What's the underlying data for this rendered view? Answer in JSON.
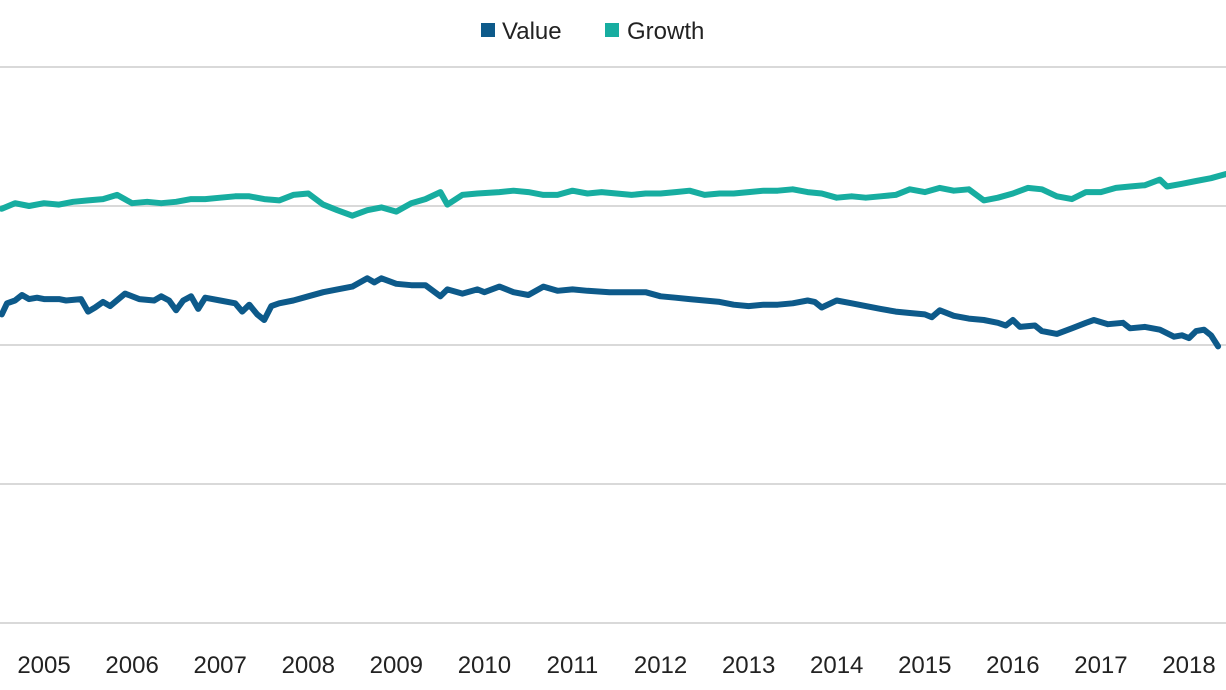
{
  "chart_data": {
    "type": "line",
    "title": "",
    "xlabel": "",
    "ylabel": "",
    "x_ticks": [
      "2005",
      "2006",
      "2007",
      "2008",
      "2009",
      "2010",
      "2011",
      "2012",
      "2013",
      "2014",
      "2015",
      "2016",
      "2017",
      "2018"
    ],
    "x_start": 2004.5,
    "x_end": 2018.42,
    "ylim": [
      0,
      4
    ],
    "y_gridlines": [
      0,
      1,
      2,
      3,
      4
    ],
    "grid": true,
    "legend_position": "top-center",
    "series": [
      {
        "name": "Value",
        "color": "#0d5a8a",
        "points": [
          [
            2004.52,
            2.22
          ],
          [
            2004.58,
            2.3
          ],
          [
            2004.67,
            2.32
          ],
          [
            2004.75,
            2.36
          ],
          [
            2004.83,
            2.33
          ],
          [
            2004.92,
            2.34
          ],
          [
            2005.0,
            2.33
          ],
          [
            2005.17,
            2.33
          ],
          [
            2005.25,
            2.32
          ],
          [
            2005.42,
            2.33
          ],
          [
            2005.5,
            2.24
          ],
          [
            2005.58,
            2.27
          ],
          [
            2005.67,
            2.31
          ],
          [
            2005.75,
            2.28
          ],
          [
            2005.92,
            2.37
          ],
          [
            2006.08,
            2.33
          ],
          [
            2006.25,
            2.32
          ],
          [
            2006.33,
            2.35
          ],
          [
            2006.42,
            2.32
          ],
          [
            2006.5,
            2.25
          ],
          [
            2006.58,
            2.32
          ],
          [
            2006.67,
            2.35
          ],
          [
            2006.75,
            2.26
          ],
          [
            2006.83,
            2.34
          ],
          [
            2007.0,
            2.32
          ],
          [
            2007.17,
            2.3
          ],
          [
            2007.25,
            2.24
          ],
          [
            2007.33,
            2.29
          ],
          [
            2007.42,
            2.22
          ],
          [
            2007.5,
            2.18
          ],
          [
            2007.58,
            2.28
          ],
          [
            2007.67,
            2.3
          ],
          [
            2007.83,
            2.32
          ],
          [
            2008.0,
            2.35
          ],
          [
            2008.17,
            2.38
          ],
          [
            2008.33,
            2.4
          ],
          [
            2008.5,
            2.42
          ],
          [
            2008.67,
            2.48
          ],
          [
            2008.75,
            2.45
          ],
          [
            2008.83,
            2.48
          ],
          [
            2009.0,
            2.44
          ],
          [
            2009.17,
            2.43
          ],
          [
            2009.33,
            2.43
          ],
          [
            2009.5,
            2.35
          ],
          [
            2009.58,
            2.4
          ],
          [
            2009.75,
            2.37
          ],
          [
            2009.92,
            2.4
          ],
          [
            2010.0,
            2.38
          ],
          [
            2010.17,
            2.42
          ],
          [
            2010.33,
            2.38
          ],
          [
            2010.5,
            2.36
          ],
          [
            2010.67,
            2.42
          ],
          [
            2010.83,
            2.39
          ],
          [
            2011.0,
            2.4
          ],
          [
            2011.17,
            2.39
          ],
          [
            2011.42,
            2.38
          ],
          [
            2011.67,
            2.38
          ],
          [
            2011.83,
            2.38
          ],
          [
            2012.0,
            2.35
          ],
          [
            2012.17,
            2.34
          ],
          [
            2012.33,
            2.33
          ],
          [
            2012.5,
            2.32
          ],
          [
            2012.67,
            2.31
          ],
          [
            2012.83,
            2.29
          ],
          [
            2013.0,
            2.28
          ],
          [
            2013.17,
            2.29
          ],
          [
            2013.33,
            2.29
          ],
          [
            2013.5,
            2.3
          ],
          [
            2013.67,
            2.32
          ],
          [
            2013.75,
            2.31
          ],
          [
            2013.83,
            2.27
          ],
          [
            2014.0,
            2.32
          ],
          [
            2014.17,
            2.3
          ],
          [
            2014.33,
            2.28
          ],
          [
            2014.5,
            2.26
          ],
          [
            2014.67,
            2.24
          ],
          [
            2014.83,
            2.23
          ],
          [
            2015.0,
            2.22
          ],
          [
            2015.08,
            2.2
          ],
          [
            2015.17,
            2.25
          ],
          [
            2015.33,
            2.21
          ],
          [
            2015.5,
            2.19
          ],
          [
            2015.67,
            2.18
          ],
          [
            2015.83,
            2.16
          ],
          [
            2015.92,
            2.14
          ],
          [
            2016.0,
            2.18
          ],
          [
            2016.08,
            2.13
          ],
          [
            2016.25,
            2.14
          ],
          [
            2016.33,
            2.1
          ],
          [
            2016.5,
            2.08
          ],
          [
            2016.67,
            2.12
          ],
          [
            2016.83,
            2.16
          ],
          [
            2016.92,
            2.18
          ],
          [
            2017.08,
            2.15
          ],
          [
            2017.25,
            2.16
          ],
          [
            2017.33,
            2.12
          ],
          [
            2017.5,
            2.13
          ],
          [
            2017.67,
            2.11
          ],
          [
            2017.83,
            2.06
          ],
          [
            2017.92,
            2.07
          ],
          [
            2018.0,
            2.05
          ],
          [
            2018.08,
            2.1
          ],
          [
            2018.17,
            2.11
          ],
          [
            2018.25,
            2.07
          ],
          [
            2018.33,
            1.99
          ]
        ]
      },
      {
        "name": "Growth",
        "color": "#17ada0",
        "points": [
          [
            2004.52,
            2.98
          ],
          [
            2004.67,
            3.02
          ],
          [
            2004.83,
            3.0
          ],
          [
            2005.0,
            3.02
          ],
          [
            2005.17,
            3.01
          ],
          [
            2005.33,
            3.03
          ],
          [
            2005.5,
            3.04
          ],
          [
            2005.67,
            3.05
          ],
          [
            2005.83,
            3.08
          ],
          [
            2006.0,
            3.02
          ],
          [
            2006.17,
            3.03
          ],
          [
            2006.33,
            3.02
          ],
          [
            2006.5,
            3.03
          ],
          [
            2006.67,
            3.05
          ],
          [
            2006.83,
            3.05
          ],
          [
            2007.0,
            3.06
          ],
          [
            2007.17,
            3.07
          ],
          [
            2007.33,
            3.07
          ],
          [
            2007.5,
            3.05
          ],
          [
            2007.67,
            3.04
          ],
          [
            2007.83,
            3.08
          ],
          [
            2008.0,
            3.09
          ],
          [
            2008.17,
            3.01
          ],
          [
            2008.33,
            2.97
          ],
          [
            2008.5,
            2.93
          ],
          [
            2008.67,
            2.97
          ],
          [
            2008.83,
            2.99
          ],
          [
            2009.0,
            2.96
          ],
          [
            2009.17,
            3.02
          ],
          [
            2009.33,
            3.05
          ],
          [
            2009.5,
            3.1
          ],
          [
            2009.58,
            3.01
          ],
          [
            2009.75,
            3.08
          ],
          [
            2009.92,
            3.09
          ],
          [
            2010.17,
            3.1
          ],
          [
            2010.33,
            3.11
          ],
          [
            2010.5,
            3.1
          ],
          [
            2010.67,
            3.08
          ],
          [
            2010.83,
            3.08
          ],
          [
            2011.0,
            3.11
          ],
          [
            2011.17,
            3.09
          ],
          [
            2011.33,
            3.1
          ],
          [
            2011.5,
            3.09
          ],
          [
            2011.67,
            3.08
          ],
          [
            2011.83,
            3.09
          ],
          [
            2012.0,
            3.09
          ],
          [
            2012.17,
            3.1
          ],
          [
            2012.33,
            3.11
          ],
          [
            2012.5,
            3.08
          ],
          [
            2012.67,
            3.09
          ],
          [
            2012.83,
            3.09
          ],
          [
            2013.0,
            3.1
          ],
          [
            2013.17,
            3.11
          ],
          [
            2013.33,
            3.11
          ],
          [
            2013.5,
            3.12
          ],
          [
            2013.67,
            3.1
          ],
          [
            2013.83,
            3.09
          ],
          [
            2014.0,
            3.06
          ],
          [
            2014.17,
            3.07
          ],
          [
            2014.33,
            3.06
          ],
          [
            2014.5,
            3.07
          ],
          [
            2014.67,
            3.08
          ],
          [
            2014.83,
            3.12
          ],
          [
            2015.0,
            3.1
          ],
          [
            2015.17,
            3.13
          ],
          [
            2015.33,
            3.11
          ],
          [
            2015.5,
            3.12
          ],
          [
            2015.67,
            3.04
          ],
          [
            2015.83,
            3.06
          ],
          [
            2016.0,
            3.09
          ],
          [
            2016.17,
            3.13
          ],
          [
            2016.33,
            3.12
          ],
          [
            2016.5,
            3.07
          ],
          [
            2016.67,
            3.05
          ],
          [
            2016.83,
            3.1
          ],
          [
            2017.0,
            3.1
          ],
          [
            2017.17,
            3.13
          ],
          [
            2017.33,
            3.14
          ],
          [
            2017.5,
            3.15
          ],
          [
            2017.67,
            3.19
          ],
          [
            2017.75,
            3.14
          ],
          [
            2017.92,
            3.16
          ],
          [
            2018.08,
            3.18
          ],
          [
            2018.25,
            3.2
          ],
          [
            2018.42,
            3.23
          ]
        ]
      }
    ]
  }
}
